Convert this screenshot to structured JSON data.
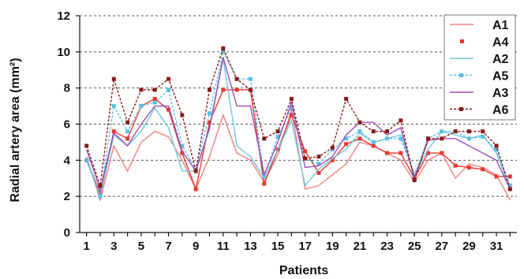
{
  "chart_data": {
    "type": "line",
    "xlabel": "Patients",
    "ylabel": "Radial artery area (mm²)",
    "x": [
      1,
      2,
      3,
      4,
      5,
      6,
      7,
      8,
      9,
      10,
      11,
      12,
      13,
      14,
      15,
      16,
      17,
      18,
      19,
      20,
      21,
      22,
      23,
      24,
      25,
      26,
      27,
      28,
      29,
      30,
      31,
      32
    ],
    "x_tick_labels": [
      "1",
      "3",
      "5",
      "7",
      "9",
      "11",
      "13",
      "15",
      "17",
      "19",
      "21",
      "23",
      "25",
      "27",
      "29",
      "31"
    ],
    "x_tick_values": [
      1,
      3,
      5,
      7,
      9,
      11,
      13,
      15,
      17,
      19,
      21,
      23,
      25,
      27,
      29,
      31
    ],
    "ylim": [
      0,
      12
    ],
    "y_ticks": [
      0,
      2,
      4,
      6,
      8,
      10,
      12
    ],
    "y_tick_labels": [
      "0",
      "2",
      "4",
      "6",
      "8",
      "10",
      "12"
    ],
    "grid": "horizontal-dashed",
    "legend_position": "top-right",
    "series": [
      {
        "name": "A1",
        "color": "#f08080",
        "dash": "",
        "marker": "none",
        "values": [
          4.2,
          1.8,
          4.8,
          3.4,
          5.0,
          5.6,
          5.3,
          4.0,
          2.4,
          4.2,
          6.5,
          4.4,
          4.0,
          2.8,
          4.3,
          6.8,
          2.4,
          2.6,
          3.2,
          3.8,
          5.0,
          4.8,
          4.4,
          4.0,
          2.8,
          4.0,
          4.4,
          3.0,
          3.8,
          3.6,
          3.2,
          1.8
        ]
      },
      {
        "name": "A4",
        "color": "#e8382f",
        "dash": "",
        "marker": "square",
        "values": [
          4.0,
          2.2,
          5.6,
          5.2,
          7.0,
          7.4,
          6.8,
          4.4,
          2.4,
          6.1,
          7.9,
          7.9,
          7.9,
          2.7,
          4.6,
          6.5,
          4.5,
          3.3,
          4.0,
          4.9,
          5.2,
          4.8,
          4.4,
          4.4,
          3.0,
          4.4,
          4.4,
          3.7,
          3.6,
          3.5,
          3.1,
          3.1
        ]
      },
      {
        "name": "A2",
        "color": "#6cc8e0",
        "dash": "",
        "marker": "none",
        "values": [
          4.1,
          2.0,
          5.4,
          4.8,
          5.6,
          6.9,
          5.8,
          3.4,
          3.4,
          5.7,
          9.6,
          4.8,
          4.2,
          3.0,
          4.6,
          6.2,
          2.6,
          3.5,
          4.1,
          4.6,
          5.5,
          5.0,
          5.2,
          5.4,
          3.2,
          4.6,
          5.6,
          5.4,
          5.2,
          5.4,
          4.4,
          2.4
        ]
      },
      {
        "name": "A5",
        "color": "#5bbfe0",
        "dash": "3,2",
        "marker": "square",
        "values": [
          4.0,
          2.0,
          7.0,
          5.6,
          7.0,
          7.2,
          7.9,
          4.8,
          3.5,
          6.6,
          10.0,
          8.5,
          8.5,
          3.1,
          5.3,
          6.9,
          4.1,
          3.8,
          4.6,
          5.2,
          5.6,
          5.0,
          5.2,
          5.2,
          3.2,
          5.2,
          5.6,
          5.6,
          5.2,
          5.3,
          4.6,
          2.6
        ]
      },
      {
        "name": "A3",
        "color": "#9b4fb8",
        "dash": "",
        "marker": "none",
        "values": [
          4.6,
          2.4,
          5.5,
          4.8,
          6.0,
          7.0,
          7.0,
          4.5,
          3.4,
          5.8,
          9.7,
          7.0,
          7.0,
          3.2,
          5.0,
          7.2,
          3.6,
          3.7,
          4.2,
          5.4,
          6.1,
          6.1,
          5.4,
          5.8,
          3.0,
          5.1,
          5.2,
          5.2,
          4.8,
          4.4,
          4.0,
          2.4
        ]
      },
      {
        "name": "A6",
        "color": "#8b1a1a",
        "dash": "3,2",
        "marker": "square",
        "values": [
          4.8,
          2.6,
          8.5,
          6.1,
          7.9,
          7.9,
          8.5,
          6.5,
          3.4,
          7.9,
          10.2,
          8.5,
          7.9,
          5.2,
          5.6,
          7.4,
          4.1,
          4.2,
          4.7,
          7.4,
          6.1,
          5.6,
          5.6,
          6.2,
          2.9,
          5.2,
          5.2,
          5.6,
          5.6,
          5.6,
          4.8,
          2.4
        ]
      }
    ]
  }
}
